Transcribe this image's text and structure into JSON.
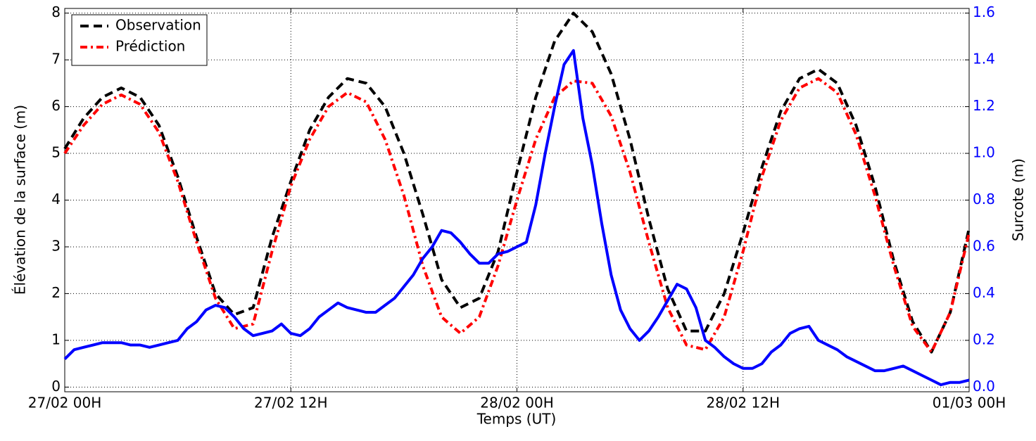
{
  "chart_data": {
    "type": "line",
    "x_label": "Temps (UT)",
    "y_label": "Élévation de la surface (m)",
    "y2_label": "Surcote (m)",
    "xlim": [
      0,
      48
    ],
    "xticks": [
      {
        "value": 0,
        "label": "27/02 00H"
      },
      {
        "value": 12,
        "label": "27/02 12H"
      },
      {
        "value": 24,
        "label": "28/02 00H"
      },
      {
        "value": 36,
        "label": "28/02 12H"
      },
      {
        "value": 48,
        "label": "01/03 00H"
      }
    ],
    "ylim": [
      -0.1,
      8.1
    ],
    "yticks": [
      0,
      1,
      2,
      3,
      4,
      5,
      6,
      7,
      8
    ],
    "y2lim": [
      -0.02,
      1.62
    ],
    "y2ticks": [
      {
        "value": 0,
        "label": "0.0"
      },
      0.2,
      0.4,
      0.6,
      0.8,
      {
        "value": 1,
        "label": "1.0"
      },
      1.2,
      1.4,
      1.6
    ],
    "y2_color": "#0000ff",
    "grid": true,
    "legend": "upper left",
    "series": [
      {
        "name": "Observation",
        "color": "#000000",
        "dash": "dashed",
        "x": [
          0,
          1,
          2,
          3,
          4,
          5,
          6,
          7,
          8,
          9,
          10,
          11,
          12,
          13,
          14,
          15,
          16,
          17,
          18,
          19,
          20,
          21,
          22,
          23,
          24,
          25,
          26,
          27,
          28,
          29,
          30,
          31,
          32,
          33,
          34,
          35,
          36,
          37,
          38,
          39,
          40,
          41,
          42,
          43,
          44,
          45,
          46,
          47,
          48
        ],
        "values": [
          5.1,
          5.75,
          6.2,
          6.4,
          6.2,
          5.6,
          4.5,
          3.2,
          2.0,
          1.55,
          1.7,
          3.2,
          4.4,
          5.5,
          6.2,
          6.6,
          6.5,
          6.0,
          5.0,
          3.7,
          2.3,
          1.7,
          1.9,
          2.9,
          4.6,
          6.2,
          7.4,
          8.0,
          7.6,
          6.7,
          5.3,
          3.6,
          2.1,
          1.2,
          1.2,
          2.0,
          3.3,
          4.7,
          5.9,
          6.6,
          6.8,
          6.5,
          5.6,
          4.3,
          2.7,
          1.4,
          0.75,
          1.6,
          3.4
        ]
      },
      {
        "name": "Prédiction",
        "color": "#ff0000",
        "dash": "dashdot",
        "x": [
          0,
          1,
          2,
          3,
          4,
          5,
          6,
          7,
          8,
          9,
          10,
          11,
          12,
          13,
          14,
          15,
          16,
          17,
          18,
          19,
          20,
          21,
          22,
          23,
          24,
          25,
          26,
          27,
          28,
          29,
          30,
          31,
          32,
          33,
          34,
          35,
          36,
          37,
          38,
          39,
          40,
          41,
          42,
          43,
          44,
          45,
          46,
          47,
          48
        ],
        "values": [
          5.0,
          5.6,
          6.05,
          6.25,
          6.05,
          5.45,
          4.4,
          3.1,
          1.9,
          1.25,
          1.35,
          2.9,
          4.3,
          5.3,
          6.0,
          6.3,
          6.1,
          5.3,
          4.1,
          2.6,
          1.5,
          1.15,
          1.5,
          2.6,
          4.0,
          5.3,
          6.2,
          6.55,
          6.5,
          5.8,
          4.6,
          3.1,
          1.7,
          0.9,
          0.8,
          1.5,
          2.9,
          4.5,
          5.7,
          6.4,
          6.6,
          6.3,
          5.4,
          4.1,
          2.6,
          1.3,
          0.75,
          1.6,
          3.3
        ]
      },
      {
        "name": "Surcote",
        "color": "#0000ff",
        "dash": "solid",
        "axis": "y2",
        "x": [
          0,
          0.5,
          1,
          1.5,
          2,
          2.5,
          3,
          3.5,
          4,
          4.5,
          5,
          5.5,
          6,
          6.5,
          7,
          7.5,
          8,
          8.5,
          9,
          9.5,
          10,
          10.5,
          11,
          11.5,
          12,
          12.5,
          13,
          13.5,
          14,
          14.5,
          15,
          15.5,
          16,
          16.5,
          17,
          17.5,
          18,
          18.5,
          19,
          19.5,
          20,
          20.5,
          21,
          21.5,
          22,
          22.5,
          23,
          23.5,
          24,
          24.5,
          25,
          25.5,
          26,
          26.5,
          27,
          27.5,
          28,
          28.5,
          29,
          29.5,
          30,
          30.5,
          31,
          31.5,
          32,
          32.5,
          33,
          33.5,
          34,
          34.5,
          35,
          35.5,
          36,
          36.5,
          37,
          37.5,
          38,
          38.5,
          39,
          39.5,
          40,
          40.5,
          41,
          41.5,
          42,
          42.5,
          43,
          43.5,
          44,
          44.5,
          45,
          45.5,
          46,
          46.5,
          47,
          47.5,
          48
        ],
        "values": [
          0.12,
          0.16,
          0.17,
          0.18,
          0.19,
          0.19,
          0.19,
          0.18,
          0.18,
          0.17,
          0.18,
          0.19,
          0.2,
          0.25,
          0.28,
          0.33,
          0.35,
          0.34,
          0.3,
          0.25,
          0.22,
          0.23,
          0.24,
          0.27,
          0.23,
          0.22,
          0.25,
          0.3,
          0.33,
          0.36,
          0.34,
          0.33,
          0.32,
          0.32,
          0.35,
          0.38,
          0.43,
          0.48,
          0.55,
          0.6,
          0.67,
          0.66,
          0.62,
          0.57,
          0.53,
          0.53,
          0.57,
          0.58,
          0.6,
          0.62,
          0.78,
          1.0,
          1.2,
          1.38,
          1.44,
          1.15,
          0.95,
          0.7,
          0.48,
          0.33,
          0.25,
          0.2,
          0.24,
          0.3,
          0.37,
          0.44,
          0.42,
          0.34,
          0.2,
          0.17,
          0.13,
          0.1,
          0.08,
          0.08,
          0.1,
          0.15,
          0.18,
          0.23,
          0.25,
          0.26,
          0.2,
          0.18,
          0.16,
          0.13,
          0.11,
          0.09,
          0.07,
          0.07,
          0.08,
          0.09,
          0.07,
          0.05,
          0.03,
          0.01,
          0.02,
          0.02,
          0.03
        ]
      }
    ]
  }
}
